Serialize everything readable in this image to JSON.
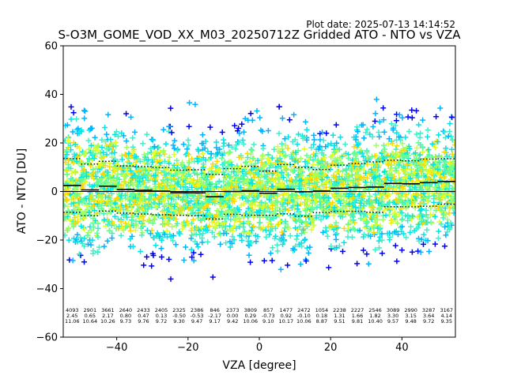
{
  "header": {
    "plot_date": "Plot date: 2025-07-13 14:14:52",
    "title": "S-O3M_GOME_VOD_XX_M03_20250712Z Gridded ATO - NTO vs VZA"
  },
  "chart_data": {
    "type": "scatter",
    "title": "S-O3M_GOME_VOD_XX_M03_20250712Z Gridded ATO - NTO vs VZA",
    "xlabel": "VZA [degree]",
    "ylabel": "ATO - NTO [DU]",
    "xlim": [
      -55,
      55
    ],
    "ylim": [
      -60,
      60
    ],
    "xticks": [
      -40,
      -20,
      0,
      20,
      40
    ],
    "yticks": [
      -60,
      -40,
      -20,
      0,
      20,
      40,
      60
    ],
    "grid": false,
    "marker": "+",
    "colors": {
      "scatter": [
        "#0000ff",
        "#00b4ff",
        "#00e5e5",
        "#3cf0c8",
        "#60ff90",
        "#a0ff60",
        "#e0ff20",
        "#ffd700"
      ],
      "line": "#000000",
      "frame": "#000000"
    },
    "bins": {
      "centers": [
        -52.5,
        -47.5,
        -42.5,
        -37.5,
        -32.5,
        -27.5,
        -22.5,
        -17.5,
        -12.5,
        -7.5,
        -2.5,
        2.5,
        7.5,
        12.5,
        17.5,
        22.5,
        27.5,
        32.5,
        37.5,
        42.5,
        47.5,
        52.5
      ],
      "counts": [
        "4093",
        "2901",
        "3661",
        "2640",
        "2433",
        "2405",
        "2325",
        "2386",
        "846",
        "2373",
        "3809",
        "857",
        "1477",
        "2472",
        "1054",
        "2238",
        "2227",
        "2546",
        "3089",
        "2990",
        "3287",
        "3167"
      ],
      "mean": [
        "2.45",
        "0.65",
        "2.17",
        "0.80",
        "0.47",
        "0.13",
        "-0.50",
        "-0.53",
        "-2.17",
        "0.00",
        "0.29",
        "-0.73",
        "0.92",
        "-0.10",
        "0.18",
        "1.31",
        "1.66",
        "1.82",
        "3.30",
        "3.15",
        "3.64",
        "4.14"
      ],
      "std": [
        "11.06",
        "10.64",
        "10.26",
        "9.73",
        "9.76",
        "9.72",
        "9.30",
        "9.47",
        "9.17",
        "9.42",
        "10.06",
        "9.10",
        "10.17",
        "10.06",
        "8.87",
        "9.51",
        "9.81",
        "10.40",
        "9.57",
        "9.48",
        "9.72",
        "9.35"
      ]
    },
    "series": [
      {
        "kind": "mean",
        "style": "solid-step"
      },
      {
        "kind": "mean + std",
        "style": "dotted-step"
      },
      {
        "kind": "mean - std",
        "style": "dotted-step"
      }
    ],
    "zero_line": 0
  }
}
